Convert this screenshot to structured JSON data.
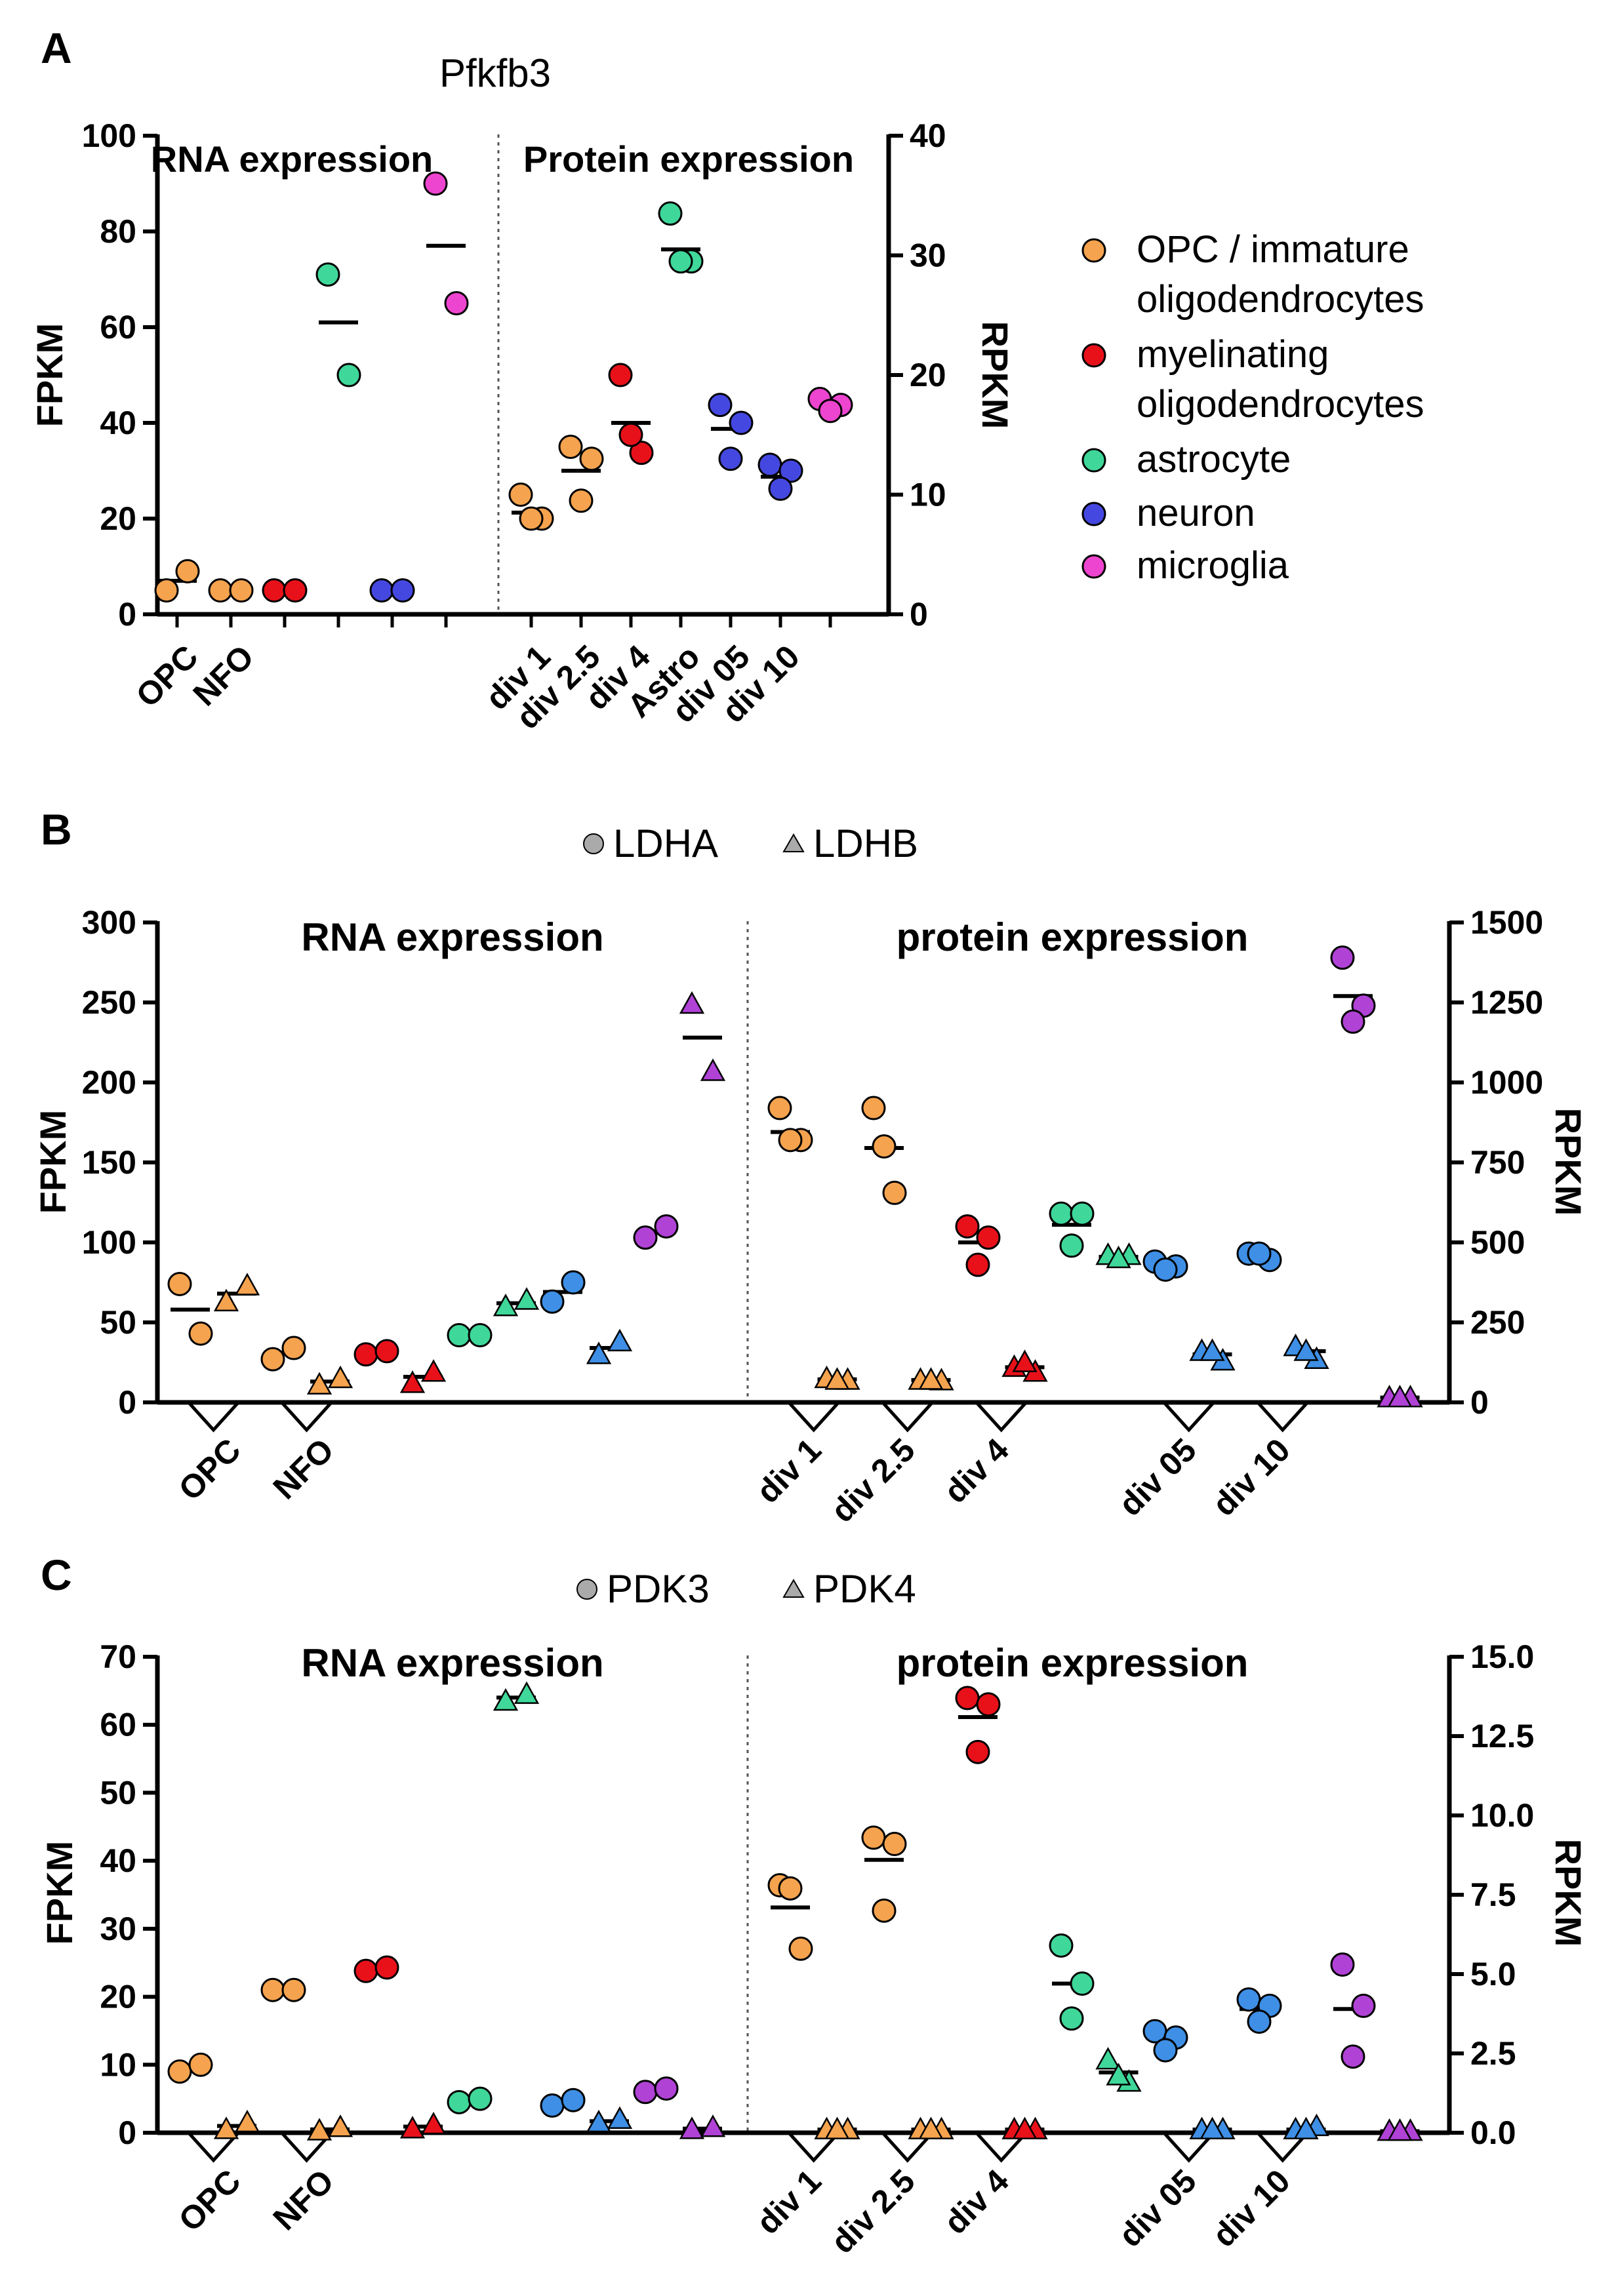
{
  "colors": {
    "opc": "#F5A34E",
    "myelin": "#E8111A",
    "astro": "#3FD89A",
    "neuron": "#4548E0",
    "microglia": "#EE45D0",
    "neuron_light": "#3E8FE5",
    "microglia_purple": "#B042D6",
    "legend_marker": "#AAAAAA"
  },
  "chart_data": [
    {
      "panel": "A",
      "type": "scatter",
      "title": "Pfkfb3",
      "left_section_label": "RNA expression",
      "right_section_label": "Protein expression",
      "ylabel_left": "FPKM",
      "ylabel_right": "RPKM",
      "ylim_left": [
        0,
        100
      ],
      "ylim_right": [
        0,
        40
      ],
      "yticks_left": [
        "0",
        "20",
        "40",
        "60",
        "80",
        "100"
      ],
      "yticks_right": [
        "0",
        "10",
        "20",
        "30",
        "40"
      ],
      "x_tick_labels": [
        "OPC",
        "NFO",
        "div 1",
        "div 2.5",
        "div 4",
        "Astro",
        "div 05",
        "div 10"
      ],
      "legend": [
        {
          "label_line1": "OPC / immature",
          "label_line2": "oligodendrocytes",
          "color_key": "opc"
        },
        {
          "label_line1": "myelinating",
          "label_line2": "oligodendrocytes",
          "color_key": "myelin"
        },
        {
          "label_line1": "astrocyte",
          "label_line2": "",
          "color_key": "astro"
        },
        {
          "label_line1": "neuron",
          "label_line2": "",
          "color_key": "neuron"
        },
        {
          "label_line1": "microglia",
          "label_line2": "",
          "color_key": "microglia"
        }
      ],
      "rna_groups": [
        {
          "pos": 0.5,
          "cell": "opc",
          "values": [
            5,
            9
          ],
          "mean": 7
        },
        {
          "pos": 1.5,
          "cell": "opc",
          "values": [
            5,
            5
          ],
          "mean": 5
        },
        {
          "pos": 2.5,
          "cell": "myelin",
          "values": [
            5,
            5
          ],
          "mean": 5
        },
        {
          "pos": 3.5,
          "cell": "astro",
          "values": [
            71,
            50
          ],
          "mean": 61
        },
        {
          "pos": 4.5,
          "cell": "neuron",
          "values": [
            5,
            5
          ],
          "mean": 5
        },
        {
          "pos": 5.5,
          "cell": "microglia",
          "values": [
            90,
            65
          ],
          "mean": 77
        }
      ],
      "protein_groups": [
        {
          "pos": 0.5,
          "cell": "opc",
          "values": [
            10,
            8,
            8
          ],
          "mean": 8.5
        },
        {
          "pos": 1.5,
          "cell": "opc",
          "values": [
            14,
            13,
            9.5
          ],
          "mean": 12
        },
        {
          "pos": 2.5,
          "cell": "myelin",
          "values": [
            20,
            13.5,
            15
          ],
          "mean": 16
        },
        {
          "pos": 3.5,
          "cell": "astro",
          "values": [
            33.5,
            29.5,
            29.5
          ],
          "mean": 30.5
        },
        {
          "pos": 4.5,
          "cell": "neuron",
          "values": [
            17.5,
            16,
            13
          ],
          "mean": 15.5
        },
        {
          "pos": 5.5,
          "cell": "neuron",
          "values": [
            12.5,
            12,
            10.5
          ],
          "mean": 11.5
        },
        {
          "pos": 6.5,
          "cell": "microglia",
          "values": [
            18,
            17.5,
            17
          ],
          "mean": 17.5
        }
      ]
    },
    {
      "panel": "B",
      "type": "scatter",
      "series_names": [
        "LDHA",
        "LDHB"
      ],
      "left_section_label": "RNA expression",
      "right_section_label": "protein expression",
      "ylabel_left": "FPKM",
      "ylabel_right": "RPKM",
      "ylim_left": [
        0,
        300
      ],
      "ylim_right": [
        0,
        1500
      ],
      "yticks_left": [
        "0",
        "50",
        "100",
        "150",
        "200",
        "250",
        "300"
      ],
      "yticks_right": [
        "0",
        "250",
        "500",
        "750",
        "1000",
        "1250",
        "1500"
      ],
      "rna_x_tick_labels": [
        "OPC",
        "NFO"
      ],
      "protein_x_tick_labels": [
        "div 1",
        "div 2.5",
        "div 4",
        "div 05",
        "div 10"
      ],
      "rna_groups": [
        {
          "pos": 0.5,
          "cell": "opc",
          "series": "LDHA",
          "values": [
            74,
            43
          ],
          "mean": 58
        },
        {
          "pos": 1.5,
          "cell": "opc",
          "series": "LDHB",
          "values": [
            63,
            73
          ],
          "mean": 68
        },
        {
          "pos": 2.5,
          "cell": "opc",
          "series": "LDHA",
          "values": [
            27,
            34
          ],
          "mean": 31
        },
        {
          "pos": 3.5,
          "cell": "opc",
          "series": "LDHB",
          "values": [
            11,
            15
          ],
          "mean": 13
        },
        {
          "pos": 4.5,
          "cell": "myelin",
          "series": "LDHA",
          "values": [
            30,
            32
          ],
          "mean": 31
        },
        {
          "pos": 5.5,
          "cell": "myelin",
          "series": "LDHB",
          "values": [
            12,
            19
          ],
          "mean": 16
        },
        {
          "pos": 6.5,
          "cell": "astro",
          "series": "LDHA",
          "values": [
            42,
            42
          ],
          "mean": 42
        },
        {
          "pos": 7.5,
          "cell": "astro",
          "series": "LDHB",
          "values": [
            60,
            64
          ],
          "mean": 62
        },
        {
          "pos": 8.5,
          "cell": "neuron_light",
          "series": "LDHA",
          "values": [
            63,
            75
          ],
          "mean": 69
        },
        {
          "pos": 9.5,
          "cell": "neuron_light",
          "series": "LDHB",
          "values": [
            30,
            38
          ],
          "mean": 34
        },
        {
          "pos": 10.5,
          "cell": "microglia_purple",
          "series": "LDHA",
          "values": [
            103,
            110
          ],
          "mean": 106
        },
        {
          "pos": 11.5,
          "cell": "microglia_purple",
          "series": "LDHB",
          "values": [
            249,
            207
          ],
          "mean": 228
        }
      ],
      "protein_groups": [
        {
          "pos": 0.5,
          "cell": "opc",
          "series": "LDHA",
          "values": [
            920,
            820,
            820
          ],
          "mean": 845
        },
        {
          "pos": 1.5,
          "cell": "opc",
          "series": "LDHB",
          "values": [
            75,
            70,
            70
          ],
          "mean": 72
        },
        {
          "pos": 2.5,
          "cell": "opc",
          "series": "LDHA",
          "values": [
            920,
            655,
            800
          ],
          "mean": 795
        },
        {
          "pos": 3.5,
          "cell": "opc",
          "series": "LDHB",
          "values": [
            70,
            68,
            70
          ],
          "mean": 70
        },
        {
          "pos": 4.5,
          "cell": "myelin",
          "series": "LDHA",
          "values": [
            550,
            515,
            430
          ],
          "mean": 500
        },
        {
          "pos": 5.5,
          "cell": "myelin",
          "series": "LDHB",
          "values": [
            110,
            95,
            125
          ],
          "mean": 110
        },
        {
          "pos": 6.5,
          "cell": "astro",
          "series": "LDHA",
          "values": [
            590,
            590,
            490
          ],
          "mean": 555
        },
        {
          "pos": 7.5,
          "cell": "astro",
          "series": "LDHB",
          "values": [
            460,
            460,
            450
          ],
          "mean": 455
        },
        {
          "pos": 8.5,
          "cell": "neuron_light",
          "series": "LDHA",
          "values": [
            440,
            425,
            415
          ],
          "mean": 420
        },
        {
          "pos": 9.5,
          "cell": "neuron_light",
          "series": "LDHB",
          "values": [
            160,
            130,
            160
          ],
          "mean": 150
        },
        {
          "pos": 10.5,
          "cell": "neuron_light",
          "series": "LDHA",
          "values": [
            465,
            445,
            465
          ],
          "mean": 460
        },
        {
          "pos": 11.5,
          "cell": "neuron_light",
          "series": "LDHB",
          "values": [
            175,
            135,
            160
          ],
          "mean": 160
        },
        {
          "pos": 12.5,
          "cell": "microglia_purple",
          "series": "LDHA",
          "values": [
            1390,
            1240,
            1190
          ],
          "mean": 1270
        },
        {
          "pos": 13.5,
          "cell": "microglia_purple",
          "series": "LDHB",
          "values": [
            15,
            15,
            15
          ],
          "mean": 15
        }
      ]
    },
    {
      "panel": "C",
      "type": "scatter",
      "series_names": [
        "PDK3",
        "PDK4"
      ],
      "left_section_label": "RNA expression",
      "right_section_label": "protein expression",
      "ylabel_left": "FPKM",
      "ylabel_right": "RPKM",
      "ylim_left": [
        0,
        70
      ],
      "ylim_right": [
        0,
        15
      ],
      "yticks_left": [
        "0",
        "10",
        "20",
        "30",
        "40",
        "50",
        "60",
        "70"
      ],
      "yticks_right": [
        "0.0",
        "2.5",
        "5.0",
        "7.5",
        "10.0",
        "12.5",
        "15.0"
      ],
      "rna_x_tick_labels": [
        "OPC",
        "NFO"
      ],
      "protein_x_tick_labels": [
        "div 1",
        "div 2.5",
        "div 4",
        "div 05",
        "div 10"
      ],
      "rna_groups": [
        {
          "pos": 0.5,
          "cell": "opc",
          "series": "PDK3",
          "values": [
            9,
            10
          ],
          "mean": 9.5
        },
        {
          "pos": 1.5,
          "cell": "opc",
          "series": "PDK4",
          "values": [
            0.5,
            1.5
          ],
          "mean": 1
        },
        {
          "pos": 2.5,
          "cell": "opc",
          "series": "PDK3",
          "values": [
            21,
            21
          ],
          "mean": 21
        },
        {
          "pos": 3.5,
          "cell": "opc",
          "series": "PDK4",
          "values": [
            0.3,
            0.8
          ],
          "mean": 0.5
        },
        {
          "pos": 4.5,
          "cell": "myelin",
          "series": "PDK3",
          "values": [
            23.8,
            24.3
          ],
          "mean": 24
        },
        {
          "pos": 5.5,
          "cell": "myelin",
          "series": "PDK4",
          "values": [
            0.6,
            1.2
          ],
          "mean": 0.9
        },
        {
          "pos": 6.5,
          "cell": "astro",
          "series": "PDK3",
          "values": [
            4.5,
            5
          ],
          "mean": 4.7
        },
        {
          "pos": 7.5,
          "cell": "astro",
          "series": "PDK4",
          "values": [
            63.5,
            64.5
          ],
          "mean": 64
        },
        {
          "pos": 8.5,
          "cell": "neuron_light",
          "series": "PDK3",
          "values": [
            4,
            4.8
          ],
          "mean": 4.4
        },
        {
          "pos": 9.5,
          "cell": "neuron_light",
          "series": "PDK4",
          "values": [
            1.5,
            2
          ],
          "mean": 1.7
        },
        {
          "pos": 10.5,
          "cell": "microglia_purple",
          "series": "PDK3",
          "values": [
            6,
            6.5
          ],
          "mean": 6.2
        },
        {
          "pos": 11.5,
          "cell": "microglia_purple",
          "series": "PDK4",
          "values": [
            0.5,
            0.8
          ],
          "mean": 0.6
        }
      ],
      "protein_groups": [
        {
          "pos": 0.5,
          "cell": "opc",
          "series": "PDK3",
          "values": [
            7.8,
            5.8,
            7.7
          ],
          "mean": 7.1
        },
        {
          "pos": 1.5,
          "cell": "opc",
          "series": "PDK4",
          "values": [
            0.1,
            0.1,
            0.1
          ],
          "mean": 0.1
        },
        {
          "pos": 2.5,
          "cell": "opc",
          "series": "PDK3",
          "values": [
            9.3,
            9.1,
            7.0
          ],
          "mean": 8.6
        },
        {
          "pos": 3.5,
          "cell": "opc",
          "series": "PDK4",
          "values": [
            0.1,
            0.1,
            0.1
          ],
          "mean": 0.1
        },
        {
          "pos": 4.5,
          "cell": "myelin",
          "series": "PDK3",
          "values": [
            13.7,
            13.5,
            12.0
          ],
          "mean": 13.1
        },
        {
          "pos": 5.5,
          "cell": "myelin",
          "series": "PDK4",
          "values": [
            0.1,
            0.1,
            0.1
          ],
          "mean": 0.1
        },
        {
          "pos": 6.5,
          "cell": "astro",
          "series": "PDK3",
          "values": [
            5.9,
            4.7,
            3.6
          ],
          "mean": 4.7
        },
        {
          "pos": 7.5,
          "cell": "astro",
          "series": "PDK4",
          "values": [
            2.3,
            1.6,
            1.8
          ],
          "mean": 1.9
        },
        {
          "pos": 8.5,
          "cell": "neuron_light",
          "series": "PDK3",
          "values": [
            3.2,
            3.0,
            2.6
          ],
          "mean": 3.0
        },
        {
          "pos": 9.5,
          "cell": "neuron_light",
          "series": "PDK4",
          "values": [
            0.1,
            0.1,
            0.1
          ],
          "mean": 0.1
        },
        {
          "pos": 10.5,
          "cell": "neuron_light",
          "series": "PDK3",
          "values": [
            4.2,
            4.0,
            3.5
          ],
          "mean": 3.9
        },
        {
          "pos": 11.5,
          "cell": "neuron_light",
          "series": "PDK4",
          "values": [
            0.1,
            0.2,
            0.1
          ],
          "mean": 0.1
        },
        {
          "pos": 12.5,
          "cell": "microglia_purple",
          "series": "PDK3",
          "values": [
            5.3,
            4.0,
            2.4
          ],
          "mean": 3.9
        },
        {
          "pos": 13.5,
          "cell": "microglia_purple",
          "series": "PDK4",
          "values": [
            0.05,
            0.05,
            0.05
          ],
          "mean": 0.05
        }
      ]
    }
  ],
  "panels": {
    "a": {
      "letter": "A",
      "title": "Pfkfb3",
      "left_label": "RNA expression",
      "right_label": "Protein expression",
      "y_left_label": "FPKM",
      "y_right_label": "RPKM",
      "x_labels": [
        "OPC",
        "NFO",
        "div 1",
        "div 2.5",
        "div 4",
        "Astro",
        "div 05",
        "div 10"
      ],
      "legend": {
        "opc_1": "OPC / immature",
        "opc_2": "oligodendrocytes",
        "myelin_1": "myelinating",
        "myelin_2": "oligodendrocytes",
        "astro": "astrocyte",
        "neuron": "neuron",
        "microglia": "microglia"
      }
    },
    "b": {
      "letter": "B",
      "legend_circle": "LDHA",
      "legend_triangle": "LDHB",
      "left_label": "RNA expression",
      "right_label": "protein expression",
      "y_left_label": "FPKM",
      "y_right_label": "RPKM",
      "x_labels": [
        "OPC",
        "NFO",
        "div 1",
        "div 2.5",
        "div 4",
        "div 05",
        "div 10"
      ]
    },
    "c": {
      "letter": "C",
      "legend_circle": "PDK3",
      "legend_triangle": "PDK4",
      "left_label": "RNA expression",
      "right_label": "protein expression",
      "y_left_label": "FPKM",
      "y_right_label": "RPKM",
      "x_labels": [
        "OPC",
        "NFO",
        "div 1",
        "div 2.5",
        "div 4",
        "div 05",
        "div 10"
      ]
    }
  }
}
